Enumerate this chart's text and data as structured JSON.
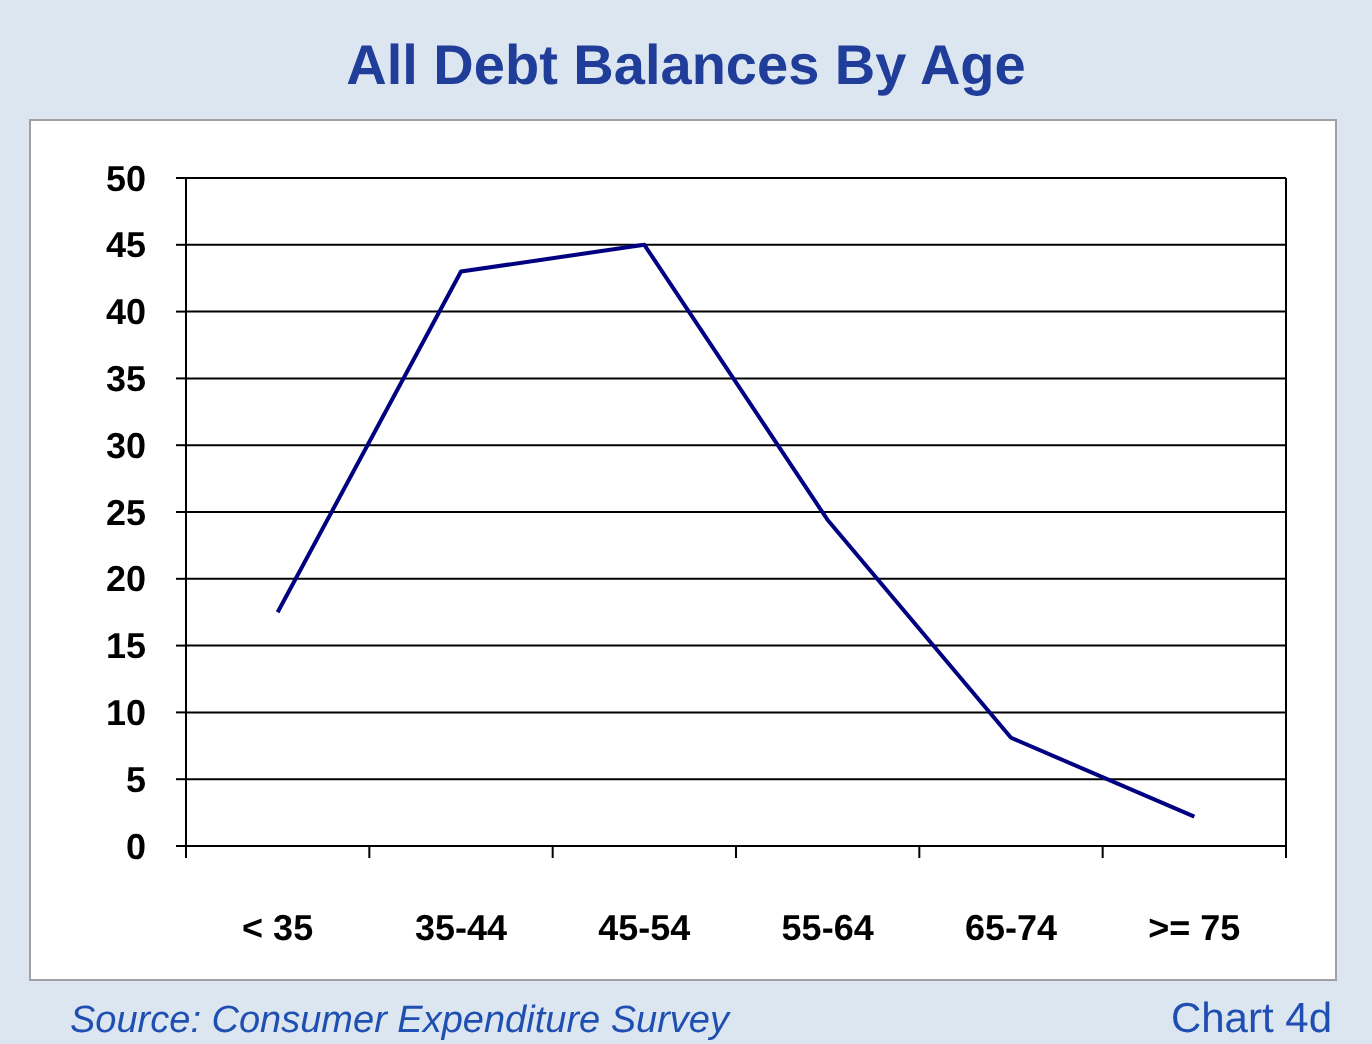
{
  "chart_data": {
    "type": "line",
    "title": "All Debt Balances By Age",
    "categories": [
      "< 35",
      "35-44",
      "45-54",
      "55-64",
      "65-74",
      ">= 75"
    ],
    "series": [
      {
        "color": "#000080",
        "values": [
          17.5,
          43,
          45,
          24.4,
          8.1,
          2.2
        ]
      }
    ],
    "ylim": [
      0,
      50
    ],
    "yticks": [
      0,
      5,
      10,
      15,
      20,
      25,
      30,
      35,
      40,
      45,
      50
    ],
    "grid": "y",
    "marker": "none",
    "line_style": "solid",
    "annotations": [
      "Source: Consumer Expenditure Survey",
      "Chart 4d"
    ]
  }
}
